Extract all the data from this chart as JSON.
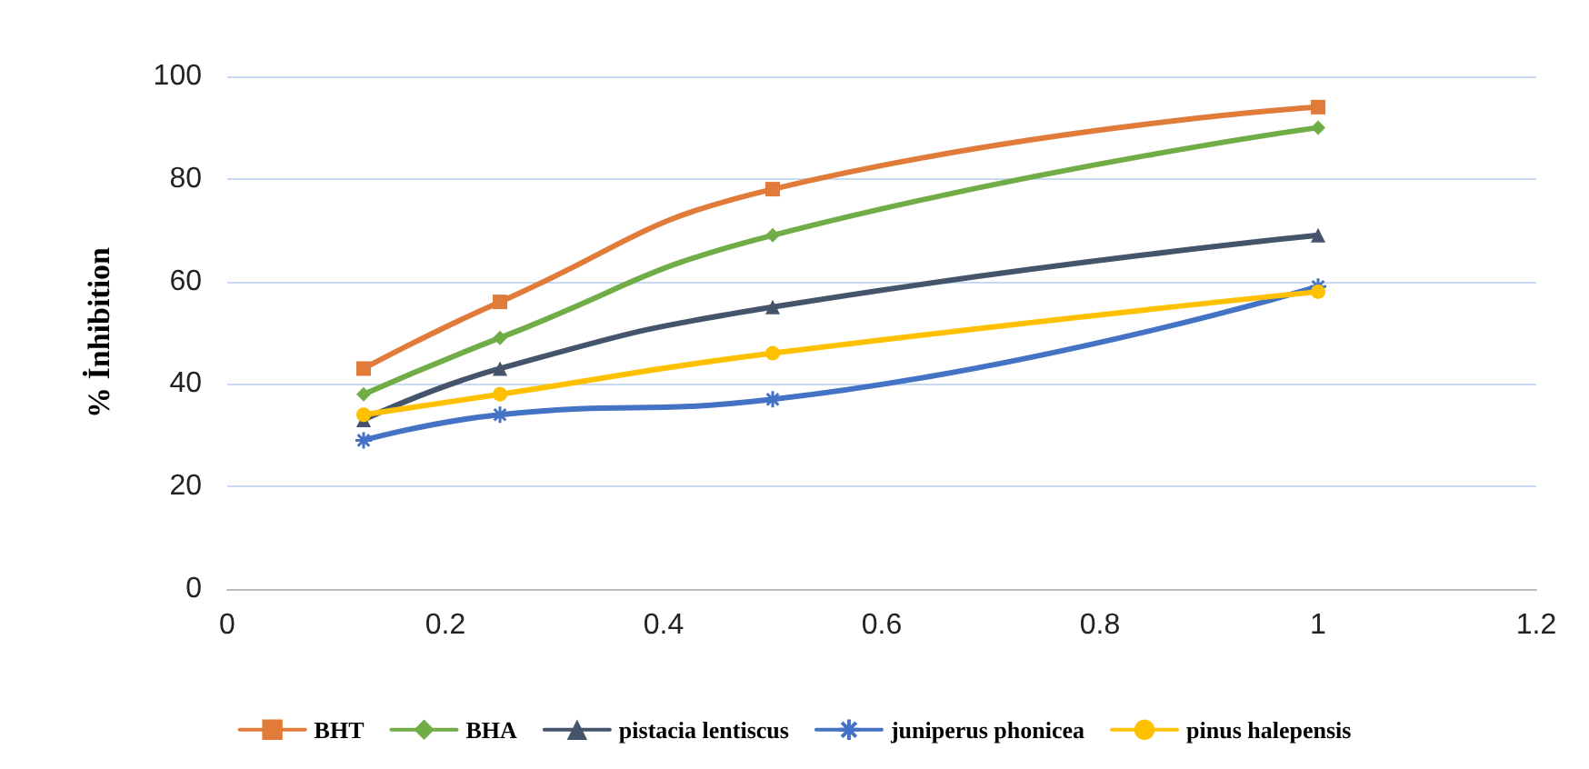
{
  "chart_data": {
    "type": "line",
    "ylabel": "% İnhibition",
    "x": [
      0.125,
      0.25,
      0.5,
      1
    ],
    "series": [
      {
        "name": "BHT",
        "color": "#e07b39",
        "marker": "square",
        "values": [
          43,
          56,
          78,
          94
        ]
      },
      {
        "name": "BHA",
        "color": "#70ad47",
        "marker": "diamond",
        "values": [
          38,
          49,
          69,
          90
        ]
      },
      {
        "name": "pistacia lentiscus",
        "color": "#44546a",
        "marker": "triangle",
        "values": [
          33,
          43,
          55,
          69
        ]
      },
      {
        "name": "juniperus phonicea",
        "color": "#4472c4",
        "marker": "cross",
        "values": [
          29,
          34,
          37,
          59
        ]
      },
      {
        "name": "pinus halepensis",
        "color": "#ffc000",
        "marker": "circle",
        "values": [
          34,
          38,
          46,
          58
        ]
      }
    ],
    "xlim": [
      0,
      1.2
    ],
    "xticks": [
      0,
      0.2,
      0.4,
      0.6,
      0.8,
      1,
      1.2
    ],
    "ylim": [
      0,
      100
    ],
    "yticks": [
      0,
      20,
      40,
      60,
      80,
      100
    ],
    "grid": "y",
    "legend": "bottom",
    "line_style": "solid"
  }
}
